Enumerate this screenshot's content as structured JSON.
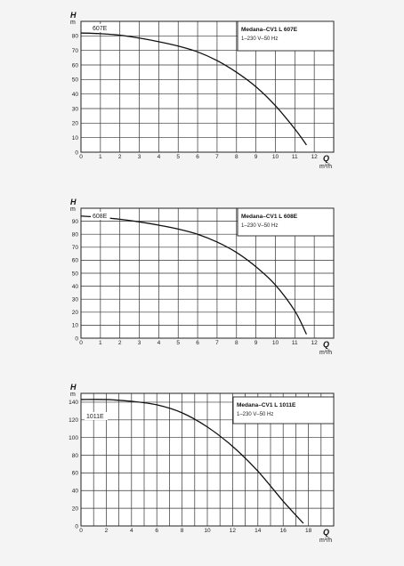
{
  "chart_data": [
    {
      "type": "line",
      "x_symbol": "Q",
      "x_unit": "m³/h",
      "y_symbol": "H",
      "y_unit": "m",
      "legend_title": "Medana–CV1 L 607E",
      "legend_subtitle": "1–230 V–50 Hz",
      "legend_position": "top-right",
      "grid": true,
      "xlim": [
        0,
        13
      ],
      "ylim": [
        0,
        90
      ],
      "x_ticks": [
        "0",
        "1",
        "2",
        "3",
        "4",
        "5",
        "6",
        "7",
        "8",
        "9",
        "10",
        "11",
        "12"
      ],
      "y_ticks": [
        "0",
        "10",
        "20",
        "30",
        "40",
        "50",
        "60",
        "70",
        "80"
      ],
      "series": [
        {
          "name": "607E",
          "x": [
            0,
            1,
            2,
            3,
            4,
            5,
            6,
            7,
            8,
            9,
            10,
            11,
            11.6
          ],
          "y": [
            82,
            81.5,
            80.5,
            78.5,
            76,
            73,
            69,
            63,
            55,
            45,
            32,
            16,
            5
          ]
        }
      ]
    },
    {
      "type": "line",
      "x_symbol": "Q",
      "x_unit": "m³/h",
      "y_symbol": "H",
      "y_unit": "m",
      "legend_title": "Medana–CV1 L 608E",
      "legend_subtitle": "1–230 V–50 Hz",
      "legend_position": "top-right",
      "grid": true,
      "xlim": [
        0,
        13
      ],
      "ylim": [
        0,
        100
      ],
      "x_ticks": [
        "0",
        "1",
        "2",
        "3",
        "4",
        "5",
        "6",
        "7",
        "8",
        "9",
        "10",
        "11",
        "12"
      ],
      "y_ticks": [
        "0",
        "10",
        "20",
        "30",
        "40",
        "50",
        "60",
        "70",
        "80",
        "90"
      ],
      "series": [
        {
          "name": "608E",
          "x": [
            0,
            1,
            2,
            3,
            4,
            5,
            6,
            7,
            8,
            9,
            10,
            11,
            11.6
          ],
          "y": [
            94,
            93,
            91.5,
            89.5,
            87,
            84,
            80,
            74,
            66,
            55,
            41,
            21,
            3
          ]
        }
      ]
    },
    {
      "type": "line",
      "x_symbol": "Q",
      "x_unit": "m³/h",
      "y_symbol": "H",
      "y_unit": "m",
      "legend_title": "Medana–CV1 L 1011E",
      "legend_subtitle": "1–230 V–50 Hz",
      "legend_position": "top-right",
      "grid": true,
      "xlim": [
        0,
        20
      ],
      "ylim": [
        0,
        150
      ],
      "x_ticks": [
        "0",
        "2",
        "4",
        "6",
        "8",
        "10",
        "12",
        "14",
        "16",
        "18"
      ],
      "y_ticks": [
        "0",
        "20",
        "40",
        "60",
        "80",
        "100",
        "120",
        "140"
      ],
      "series": [
        {
          "name": "1011E",
          "x": [
            0,
            2,
            4,
            6,
            8,
            10,
            12,
            14,
            16,
            17.6
          ],
          "y": [
            143,
            143,
            141,
            137,
            128,
            112,
            90,
            62,
            28,
            3
          ]
        }
      ]
    }
  ]
}
